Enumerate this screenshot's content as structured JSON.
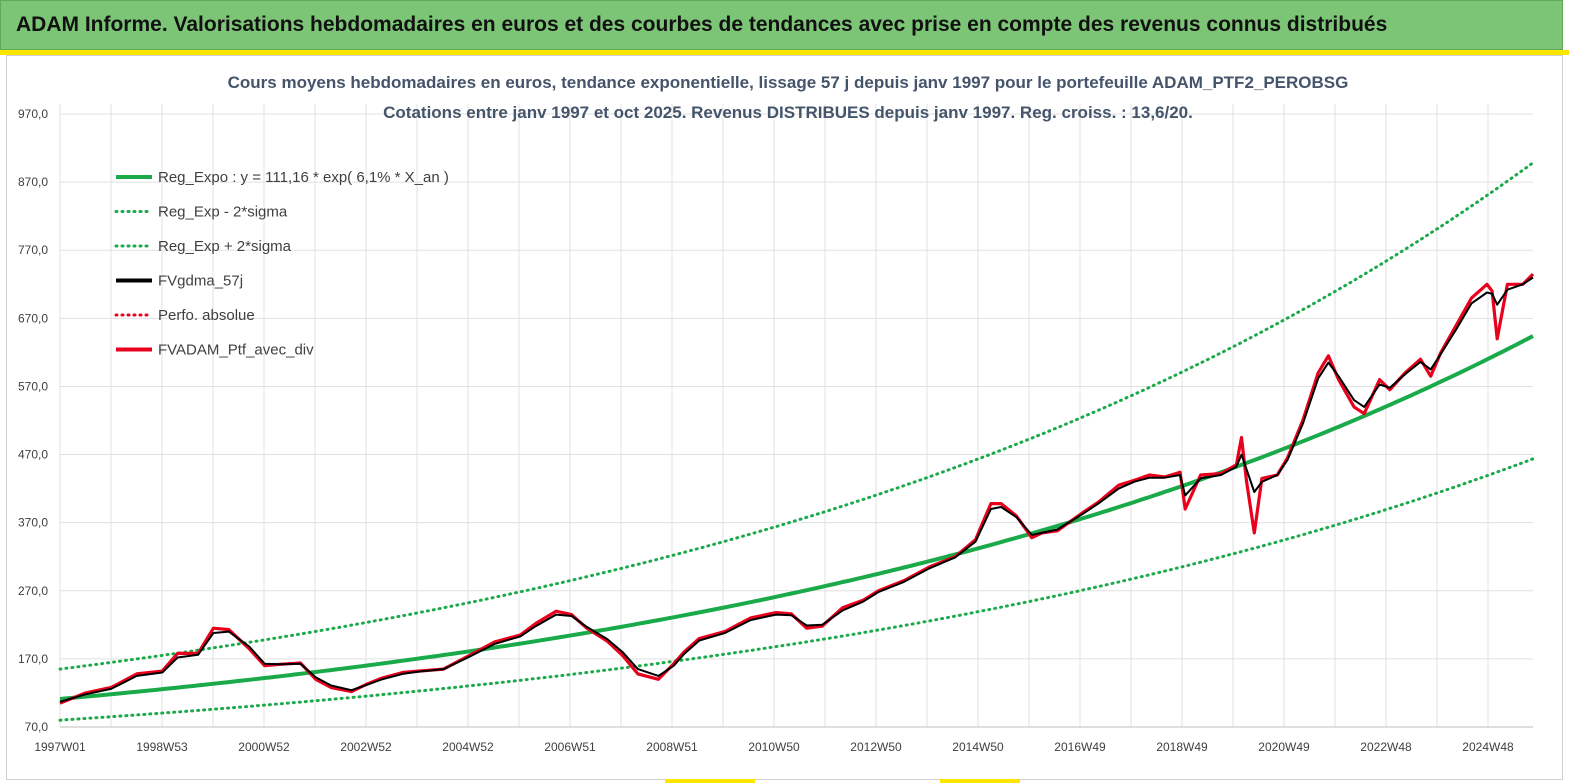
{
  "header": {
    "title": "ADAM Informe. Valorisations hebdomadaires en euros et des courbes de tendances avec prise en compte des revenus connus distribués"
  },
  "colors": {
    "header_bg": "#7cc576",
    "accent": "#ffe600",
    "reg_line": "#1aaa4a",
    "price_line": "#e8001c",
    "smooth_line": "#000000",
    "grid": "#e0e0e0"
  },
  "chart_data": {
    "type": "line",
    "title": [
      "Cours moyens hebdomadaires  en euros, tendance exponentielle, lissage 57 j depuis janv 1997 pour le portefeuille ADAM_PTF2_PEROBSG",
      "Cotations  entre janv 1997 et oct 2025. Revenus DISTRIBUES depuis janv 1997. Reg. croiss. : 13,6/20."
    ],
    "xlabel": "",
    "ylabel": "",
    "x_ticks": [
      "1997W01",
      "1998W53",
      "2000W52",
      "2002W52",
      "2004W52",
      "2006W51",
      "2008W51",
      "2010W50",
      "2012W50",
      "2014W50",
      "2016W49",
      "2018W49",
      "2020W49",
      "2022W48",
      "2024W48"
    ],
    "y_ticks": [
      "70,0",
      "170,0",
      "270,0",
      "370,0",
      "470,0",
      "570,0",
      "670,0",
      "770,0",
      "870,0",
      "970,0"
    ],
    "ylim": [
      70,
      970
    ],
    "xlim_years": [
      1997.0,
      2025.8
    ],
    "grid": true,
    "legend_placement": "top-left",
    "legend": [
      {
        "label": "Reg_Expo : y = 111,16 * exp( 6,1% *  X_an )",
        "color": "#1aaa4a",
        "style": "solid"
      },
      {
        "label": "Reg_Exp - 2*sigma",
        "color": "#1aaa4a",
        "style": "dotted"
      },
      {
        "label": "Reg_Exp + 2*sigma",
        "color": "#1aaa4a",
        "style": "dotted"
      },
      {
        "label": "FVgdma_57j",
        "color": "#000000",
        "style": "solid"
      },
      {
        "label": "Perfo. absolue",
        "color": "#e8001c",
        "style": "dotted"
      },
      {
        "label": "FVADAM_Ptf_avec_div",
        "color": "#e8001c",
        "style": "solid"
      }
    ],
    "regression": {
      "a": 111.16,
      "rate": 0.061,
      "lower_factor": 0.72,
      "upper_factor": 1.395
    },
    "series": [
      {
        "name": "FVADAM_Ptf_avec_div",
        "x": [
          1997.0,
          1997.5,
          1998.0,
          1998.5,
          1999.0,
          1999.3,
          1999.7,
          2000.0,
          2000.3,
          2000.7,
          2001.0,
          2001.3,
          2001.7,
          2002.0,
          2002.3,
          2002.7,
          2003.0,
          2003.3,
          2003.7,
          2004.0,
          2004.5,
          2005.0,
          2005.5,
          2006.0,
          2006.3,
          2006.7,
          2007.0,
          2007.3,
          2007.7,
          2008.0,
          2008.3,
          2008.7,
          2009.0,
          2009.2,
          2009.5,
          2010.0,
          2010.5,
          2011.0,
          2011.3,
          2011.6,
          2011.9,
          2012.3,
          2012.7,
          2013.0,
          2013.5,
          2014.0,
          2014.5,
          2014.9,
          2015.2,
          2015.4,
          2015.7,
          2016.0,
          2016.2,
          2016.5,
          2017.0,
          2017.3,
          2017.7,
          2018.0,
          2018.3,
          2018.6,
          2018.9,
          2019.0,
          2019.3,
          2019.7,
          2020.0,
          2020.1,
          2020.2,
          2020.35,
          2020.5,
          2020.8,
          2021.0,
          2021.3,
          2021.6,
          2021.8,
          2022.0,
          2022.3,
          2022.5,
          2022.8,
          2023.0,
          2023.3,
          2023.6,
          2023.8,
          2024.0,
          2024.3,
          2024.6,
          2024.9,
          2025.0,
          2025.1,
          2025.3,
          2025.6,
          2025.8
        ],
        "y": [
          105,
          120,
          128,
          148,
          152,
          178,
          178,
          215,
          213,
          185,
          160,
          162,
          164,
          140,
          128,
          122,
          133,
          142,
          150,
          152,
          155,
          175,
          195,
          205,
          222,
          240,
          235,
          215,
          196,
          175,
          148,
          140,
          163,
          180,
          200,
          210,
          230,
          238,
          236,
          215,
          218,
          245,
          256,
          270,
          285,
          305,
          320,
          345,
          398,
          398,
          380,
          348,
          355,
          358,
          385,
          400,
          425,
          432,
          440,
          437,
          444,
          390,
          440,
          442,
          455,
          495,
          430,
          355,
          435,
          440,
          465,
          520,
          590,
          615,
          580,
          540,
          530,
          580,
          565,
          590,
          610,
          585,
          620,
          660,
          700,
          720,
          710,
          640,
          720,
          720,
          735
        ]
      },
      {
        "name": "FVgdma_57j",
        "x": [
          1997.0,
          1997.5,
          1998.0,
          1998.5,
          1999.0,
          1999.3,
          1999.7,
          2000.0,
          2000.3,
          2000.7,
          2001.0,
          2001.3,
          2001.7,
          2002.0,
          2002.3,
          2002.7,
          2003.0,
          2003.3,
          2003.7,
          2004.0,
          2004.5,
          2005.0,
          2005.5,
          2006.0,
          2006.3,
          2006.7,
          2007.0,
          2007.3,
          2007.7,
          2008.0,
          2008.3,
          2008.7,
          2009.0,
          2009.2,
          2009.5,
          2010.0,
          2010.5,
          2011.0,
          2011.3,
          2011.6,
          2011.9,
          2012.3,
          2012.7,
          2013.0,
          2013.5,
          2014.0,
          2014.5,
          2014.9,
          2015.2,
          2015.4,
          2015.7,
          2016.0,
          2016.2,
          2016.5,
          2017.0,
          2017.3,
          2017.7,
          2018.0,
          2018.3,
          2018.6,
          2018.9,
          2019.0,
          2019.3,
          2019.7,
          2020.0,
          2020.1,
          2020.2,
          2020.35,
          2020.5,
          2020.8,
          2021.0,
          2021.3,
          2021.6,
          2021.8,
          2022.0,
          2022.3,
          2022.5,
          2022.8,
          2023.0,
          2023.3,
          2023.6,
          2023.8,
          2024.0,
          2024.3,
          2024.6,
          2024.9,
          2025.0,
          2025.1,
          2025.3,
          2025.6,
          2025.8
        ],
        "y": [
          107,
          118,
          126,
          145,
          150,
          172,
          176,
          208,
          210,
          188,
          163,
          162,
          163,
          143,
          131,
          124,
          132,
          140,
          148,
          151,
          155,
          173,
          192,
          203,
          218,
          235,
          233,
          217,
          199,
          180,
          155,
          145,
          160,
          177,
          197,
          208,
          227,
          235,
          234,
          219,
          220,
          241,
          254,
          268,
          283,
          303,
          319,
          342,
          390,
          393,
          378,
          352,
          355,
          360,
          383,
          398,
          420,
          430,
          436,
          436,
          440,
          410,
          435,
          440,
          452,
          470,
          448,
          415,
          430,
          440,
          462,
          515,
          582,
          605,
          585,
          550,
          540,
          573,
          568,
          588,
          606,
          595,
          618,
          654,
          692,
          708,
          706,
          690,
          712,
          720,
          730
        ]
      }
    ]
  }
}
